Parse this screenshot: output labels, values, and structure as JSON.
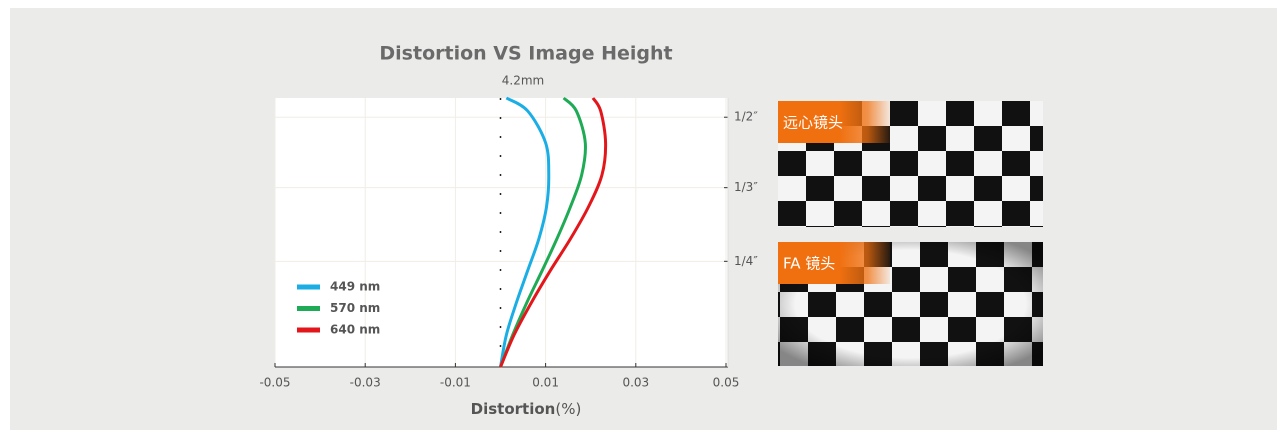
{
  "chart_data": {
    "type": "line",
    "title": "Distortion VS Image Height",
    "annotation": "4.2mm",
    "x_label": "Distortion",
    "x_unit": "(%)",
    "heights": [
      0,
      0.5,
      1,
      1.5,
      2,
      2.5,
      3,
      3.5,
      4,
      4.2
    ],
    "series": [
      {
        "name": "449 nm",
        "color": "#1aaee5",
        "values": [
          0,
          0.0013,
          0.0035,
          0.006,
          0.0085,
          0.0102,
          0.0107,
          0.01,
          0.006,
          0.0013
        ]
      },
      {
        "name": "570 nm",
        "color": "#1faa55",
        "values": [
          0,
          0.0027,
          0.0058,
          0.0092,
          0.0125,
          0.0155,
          0.018,
          0.0188,
          0.0168,
          0.014
        ]
      },
      {
        "name": "640 nm",
        "color": "#e3171b",
        "values": [
          0,
          0.003,
          0.0068,
          0.011,
          0.0155,
          0.0195,
          0.0225,
          0.0233,
          0.0222,
          0.0205
        ]
      }
    ],
    "xlim": [
      -0.05,
      0.05
    ],
    "xticks": [
      -0.05,
      -0.03,
      -0.01,
      0.01,
      0.03,
      0.05
    ],
    "ylim": [
      0,
      4.2
    ],
    "y2ticks": [
      {
        "value": 3.9,
        "label": "1/2″"
      },
      {
        "value": 2.8,
        "label": "1/3″"
      },
      {
        "value": 1.65,
        "label": "1/4″"
      }
    ],
    "grid": true,
    "legend": "lower left"
  },
  "images": [
    {
      "label": "远心镜头"
    },
    {
      "label": "FA 镜头"
    }
  ]
}
